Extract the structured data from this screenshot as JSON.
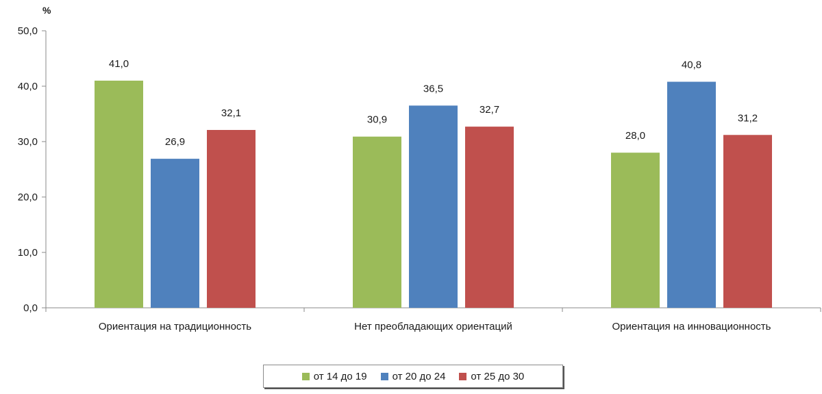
{
  "chart_data": {
    "type": "bar",
    "ylabel": "%",
    "ylim": [
      0,
      50
    ],
    "yticks": [
      "0,0",
      "10,0",
      "20,0",
      "30,0",
      "40,0",
      "50,0"
    ],
    "categories": [
      "Ориентация на традиционность",
      "Нет преобладающих ориентаций",
      "Ориентация на инновационность"
    ],
    "series": [
      {
        "name": "от 14 до 19",
        "color": "#9BBB59",
        "values": [
          41.0,
          30.9,
          28.0
        ],
        "labels": [
          "41,0",
          "30,9",
          "28,0"
        ]
      },
      {
        "name": "от 20 до 24",
        "color": "#4F81BD",
        "values": [
          26.9,
          36.5,
          40.8
        ],
        "labels": [
          "26,9",
          "36,5",
          "40,8"
        ]
      },
      {
        "name": "от 25 до 30",
        "color": "#C0504D",
        "values": [
          32.1,
          32.7,
          31.2
        ],
        "labels": [
          "32,1",
          "32,7",
          "31,2"
        ]
      }
    ],
    "grid": false,
    "legend_position": "bottom"
  }
}
